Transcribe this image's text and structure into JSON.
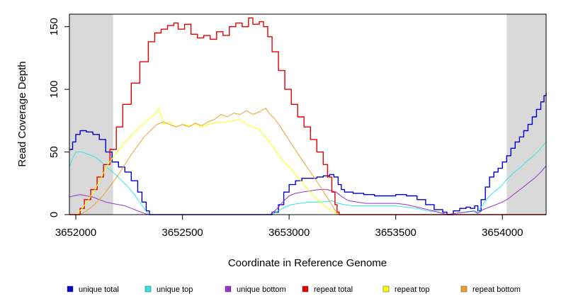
{
  "chart_data": {
    "type": "line",
    "xlabel": "Coordinate in Reference Genome",
    "ylabel": "Read Coverage Depth",
    "xlim": [
      3651970,
      3654205
    ],
    "ylim": [
      0,
      160
    ],
    "x_ticks": [
      3652000,
      3652500,
      3653000,
      3653500,
      3654000
    ],
    "x_tick_labels": [
      "3652000",
      "3652500",
      "3653000",
      "3653500",
      "3654000"
    ],
    "y_ticks": [
      0,
      50,
      100,
      150
    ],
    "y_tick_labels": [
      "0",
      "50",
      "100",
      "150"
    ],
    "shaded_regions": [
      [
        3651970,
        3652175
      ],
      [
        3654020,
        3654205
      ]
    ],
    "shaded_color": "#d9d9d9",
    "series": [
      {
        "name": "unique total",
        "color": "#0000cc",
        "step": true,
        "points": [
          [
            3651970,
            52
          ],
          [
            3651985,
            58
          ],
          [
            3652000,
            64
          ],
          [
            3652020,
            67
          ],
          [
            3652050,
            66
          ],
          [
            3652080,
            64
          ],
          [
            3652110,
            60
          ],
          [
            3652140,
            50
          ],
          [
            3652170,
            42
          ],
          [
            3652200,
            38
          ],
          [
            3652230,
            34
          ],
          [
            3652260,
            27
          ],
          [
            3652290,
            18
          ],
          [
            3652310,
            10
          ],
          [
            3652330,
            3
          ],
          [
            3652345,
            0
          ],
          [
            3652900,
            0
          ],
          [
            3652920,
            2
          ],
          [
            3652950,
            8
          ],
          [
            3652975,
            18
          ],
          [
            3653000,
            24
          ],
          [
            3653030,
            27
          ],
          [
            3653060,
            29
          ],
          [
            3653100,
            29
          ],
          [
            3653130,
            30
          ],
          [
            3653160,
            31
          ],
          [
            3653190,
            32
          ],
          [
            3653210,
            30
          ],
          [
            3653230,
            24
          ],
          [
            3653245,
            20
          ],
          [
            3653260,
            18
          ],
          [
            3653300,
            17
          ],
          [
            3653350,
            16
          ],
          [
            3653400,
            15
          ],
          [
            3653450,
            15
          ],
          [
            3653500,
            16
          ],
          [
            3653550,
            15
          ],
          [
            3653600,
            12
          ],
          [
            3653640,
            8
          ],
          [
            3653680,
            4
          ],
          [
            3653720,
            2
          ],
          [
            3653740,
            0
          ],
          [
            3653770,
            3
          ],
          [
            3653800,
            5
          ],
          [
            3653830,
            6
          ],
          [
            3653850,
            5
          ],
          [
            3653870,
            7
          ],
          [
            3653885,
            3
          ],
          [
            3653900,
            12
          ],
          [
            3653920,
            22
          ],
          [
            3653940,
            30
          ],
          [
            3653960,
            34
          ],
          [
            3653980,
            37
          ],
          [
            3654000,
            42
          ],
          [
            3654020,
            47
          ],
          [
            3654040,
            53
          ],
          [
            3654060,
            58
          ],
          [
            3654080,
            62
          ],
          [
            3654100,
            67
          ],
          [
            3654120,
            72
          ],
          [
            3654140,
            78
          ],
          [
            3654160,
            84
          ],
          [
            3654180,
            90
          ],
          [
            3654195,
            95
          ],
          [
            3654205,
            97
          ]
        ]
      },
      {
        "name": "unique top",
        "color": "#33e6e6",
        "step": false,
        "points": [
          [
            3651970,
            38
          ],
          [
            3651985,
            45
          ],
          [
            3652000,
            50
          ],
          [
            3652030,
            50
          ],
          [
            3652060,
            48
          ],
          [
            3652090,
            46
          ],
          [
            3652120,
            42
          ],
          [
            3652150,
            37
          ],
          [
            3652180,
            33
          ],
          [
            3652210,
            28
          ],
          [
            3652240,
            23
          ],
          [
            3652270,
            17
          ],
          [
            3652300,
            10
          ],
          [
            3652320,
            5
          ],
          [
            3652340,
            0
          ],
          [
            3652920,
            0
          ],
          [
            3652950,
            3
          ],
          [
            3652980,
            6
          ],
          [
            3653010,
            8
          ],
          [
            3653050,
            9
          ],
          [
            3653100,
            10
          ],
          [
            3653150,
            10
          ],
          [
            3653200,
            11
          ],
          [
            3653230,
            9
          ],
          [
            3653260,
            8
          ],
          [
            3653300,
            7
          ],
          [
            3653350,
            7
          ],
          [
            3653400,
            7
          ],
          [
            3653450,
            7
          ],
          [
            3653500,
            7
          ],
          [
            3653550,
            6
          ],
          [
            3653600,
            5
          ],
          [
            3653650,
            3
          ],
          [
            3653700,
            2
          ],
          [
            3653740,
            0
          ],
          [
            3653780,
            1
          ],
          [
            3653820,
            2
          ],
          [
            3653860,
            3
          ],
          [
            3653880,
            1
          ],
          [
            3653900,
            6
          ],
          [
            3653930,
            13
          ],
          [
            3653960,
            18
          ],
          [
            3653990,
            22
          ],
          [
            3654020,
            28
          ],
          [
            3654050,
            33
          ],
          [
            3654080,
            37
          ],
          [
            3654110,
            42
          ],
          [
            3654140,
            46
          ],
          [
            3654170,
            51
          ],
          [
            3654205,
            58
          ]
        ]
      },
      {
        "name": "unique bottom",
        "color": "#9933cc",
        "step": false,
        "points": [
          [
            3651970,
            14
          ],
          [
            3651990,
            15
          ],
          [
            3652020,
            16
          ],
          [
            3652050,
            15
          ],
          [
            3652080,
            14
          ],
          [
            3652110,
            12
          ],
          [
            3652140,
            10
          ],
          [
            3652170,
            9
          ],
          [
            3652200,
            8
          ],
          [
            3652230,
            7
          ],
          [
            3652260,
            5
          ],
          [
            3652290,
            3
          ],
          [
            3652320,
            1
          ],
          [
            3652340,
            0
          ],
          [
            3652910,
            0
          ],
          [
            3652940,
            4
          ],
          [
            3652970,
            10
          ],
          [
            3653000,
            15
          ],
          [
            3653030,
            17
          ],
          [
            3653060,
            18
          ],
          [
            3653100,
            19
          ],
          [
            3653140,
            20
          ],
          [
            3653180,
            20
          ],
          [
            3653220,
            18
          ],
          [
            3653250,
            14
          ],
          [
            3653280,
            11
          ],
          [
            3653320,
            10
          ],
          [
            3653360,
            9
          ],
          [
            3653400,
            9
          ],
          [
            3653450,
            9
          ],
          [
            3653500,
            9
          ],
          [
            3653550,
            8
          ],
          [
            3653600,
            6
          ],
          [
            3653650,
            4
          ],
          [
            3653700,
            2
          ],
          [
            3653740,
            0
          ],
          [
            3653780,
            1
          ],
          [
            3653830,
            2
          ],
          [
            3653870,
            3
          ],
          [
            3653885,
            1
          ],
          [
            3653910,
            4
          ],
          [
            3653940,
            6
          ],
          [
            3653970,
            8
          ],
          [
            3654000,
            10
          ],
          [
            3654030,
            13
          ],
          [
            3654060,
            17
          ],
          [
            3654090,
            21
          ],
          [
            3654120,
            25
          ],
          [
            3654150,
            29
          ],
          [
            3654180,
            34
          ],
          [
            3654205,
            39
          ]
        ]
      },
      {
        "name": "repeat total",
        "color": "#e60000",
        "step": true,
        "points": [
          [
            3651970,
            0
          ],
          [
            3652000,
            0
          ],
          [
            3652020,
            5
          ],
          [
            3652040,
            12
          ],
          [
            3652070,
            20
          ],
          [
            3652100,
            30
          ],
          [
            3652130,
            40
          ],
          [
            3652160,
            52
          ],
          [
            3652190,
            70
          ],
          [
            3652220,
            88
          ],
          [
            3652260,
            105
          ],
          [
            3652300,
            122
          ],
          [
            3652340,
            138
          ],
          [
            3652370,
            145
          ],
          [
            3652400,
            148
          ],
          [
            3652430,
            151
          ],
          [
            3652460,
            153
          ],
          [
            3652480,
            148
          ],
          [
            3652510,
            152
          ],
          [
            3652540,
            144
          ],
          [
            3652570,
            141
          ],
          [
            3652600,
            143
          ],
          [
            3652630,
            140
          ],
          [
            3652660,
            146
          ],
          [
            3652690,
            143
          ],
          [
            3652720,
            150
          ],
          [
            3652750,
            153
          ],
          [
            3652780,
            150
          ],
          [
            3652810,
            157
          ],
          [
            3652830,
            152
          ],
          [
            3652860,
            154
          ],
          [
            3652880,
            150
          ],
          [
            3652900,
            142
          ],
          [
            3652920,
            130
          ],
          [
            3652950,
            115
          ],
          [
            3652980,
            100
          ],
          [
            3653010,
            88
          ],
          [
            3653040,
            78
          ],
          [
            3653070,
            70
          ],
          [
            3653100,
            60
          ],
          [
            3653130,
            50
          ],
          [
            3653160,
            40
          ],
          [
            3653180,
            30
          ],
          [
            3653200,
            18
          ],
          [
            3653215,
            8
          ],
          [
            3653225,
            2
          ],
          [
            3653235,
            0
          ],
          [
            3654205,
            0
          ]
        ]
      },
      {
        "name": "repeat top",
        "color": "#ffff00",
        "step": false,
        "points": [
          [
            3651970,
            0
          ],
          [
            3652000,
            0
          ],
          [
            3652030,
            5
          ],
          [
            3652060,
            12
          ],
          [
            3652090,
            20
          ],
          [
            3652120,
            30
          ],
          [
            3652150,
            40
          ],
          [
            3652180,
            47
          ],
          [
            3652220,
            56
          ],
          [
            3652260,
            63
          ],
          [
            3652300,
            70
          ],
          [
            3652340,
            76
          ],
          [
            3652370,
            80
          ],
          [
            3652390,
            85
          ],
          [
            3652410,
            72
          ],
          [
            3652440,
            74
          ],
          [
            3652470,
            70
          ],
          [
            3652500,
            72
          ],
          [
            3652530,
            71
          ],
          [
            3652560,
            72
          ],
          [
            3652590,
            70
          ],
          [
            3652620,
            72
          ],
          [
            3652650,
            73
          ],
          [
            3652680,
            74
          ],
          [
            3652710,
            74
          ],
          [
            3652740,
            75
          ],
          [
            3652770,
            76
          ],
          [
            3652800,
            72
          ],
          [
            3652830,
            70
          ],
          [
            3652860,
            68
          ],
          [
            3652890,
            62
          ],
          [
            3652920,
            55
          ],
          [
            3652960,
            45
          ],
          [
            3653000,
            38
          ],
          [
            3653040,
            30
          ],
          [
            3653080,
            22
          ],
          [
            3653120,
            14
          ],
          [
            3653160,
            8
          ],
          [
            3653200,
            3
          ],
          [
            3653230,
            0
          ],
          [
            3654205,
            0
          ]
        ]
      },
      {
        "name": "repeat bottom",
        "color": "#f0a030",
        "step": false,
        "points": [
          [
            3651970,
            0
          ],
          [
            3652020,
            0
          ],
          [
            3652050,
            3
          ],
          [
            3652080,
            7
          ],
          [
            3652110,
            12
          ],
          [
            3652140,
            18
          ],
          [
            3652170,
            25
          ],
          [
            3652200,
            32
          ],
          [
            3652230,
            40
          ],
          [
            3652260,
            48
          ],
          [
            3652290,
            55
          ],
          [
            3652320,
            62
          ],
          [
            3652350,
            67
          ],
          [
            3652380,
            72
          ],
          [
            3652410,
            74
          ],
          [
            3652440,
            72
          ],
          [
            3652470,
            70
          ],
          [
            3652500,
            72
          ],
          [
            3652530,
            70
          ],
          [
            3652560,
            73
          ],
          [
            3652590,
            71
          ],
          [
            3652620,
            74
          ],
          [
            3652650,
            76
          ],
          [
            3652680,
            80
          ],
          [
            3652710,
            78
          ],
          [
            3652740,
            81
          ],
          [
            3652770,
            80
          ],
          [
            3652800,
            83
          ],
          [
            3652830,
            80
          ],
          [
            3652860,
            82
          ],
          [
            3652890,
            85
          ],
          [
            3652910,
            80
          ],
          [
            3652930,
            77
          ],
          [
            3652960,
            70
          ],
          [
            3652990,
            62
          ],
          [
            3653020,
            54
          ],
          [
            3653060,
            44
          ],
          [
            3653100,
            34
          ],
          [
            3653140,
            24
          ],
          [
            3653170,
            16
          ],
          [
            3653200,
            8
          ],
          [
            3653220,
            2
          ],
          [
            3653235,
            0
          ],
          [
            3654205,
            0
          ]
        ]
      }
    ]
  }
}
